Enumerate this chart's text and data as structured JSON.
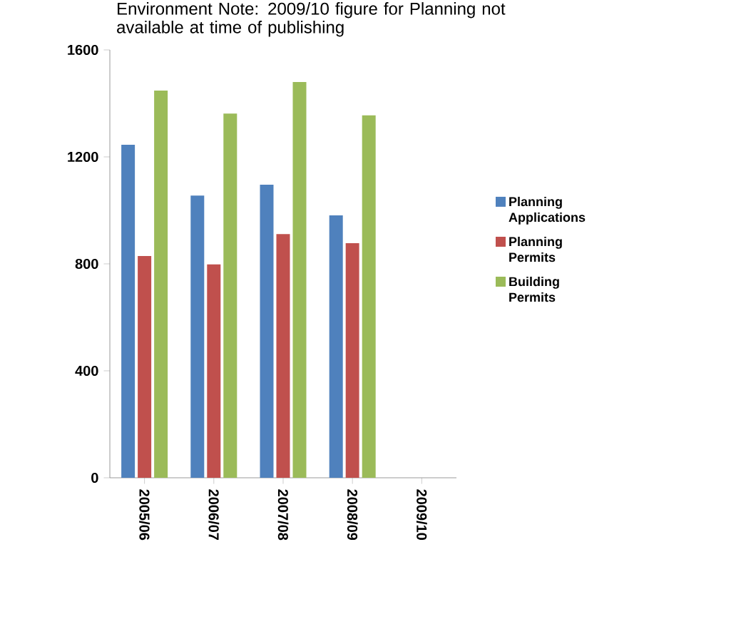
{
  "chart_data": {
    "type": "bar",
    "title": "Environment Note: 2009/10 figure for Planning not available at time of publishing",
    "categories": [
      "2005/06",
      "2006/07",
      "2007/08",
      "2008/09",
      "2009/10"
    ],
    "series": [
      {
        "name": "Planning Applications",
        "color": "#4f81bd",
        "values": [
          1245,
          1055,
          1096,
          981,
          null
        ]
      },
      {
        "name": "Planning Permits",
        "color": "#c0504d",
        "values": [
          829,
          798,
          911,
          877,
          null
        ]
      },
      {
        "name": "Building Permits",
        "color": "#9bbb59",
        "values": [
          1448,
          1362,
          1480,
          1355,
          null
        ]
      }
    ],
    "ylim": [
      0,
      1600
    ],
    "yticks": [
      0,
      400,
      800,
      1200,
      1600
    ],
    "grid": false,
    "legend": "right"
  }
}
